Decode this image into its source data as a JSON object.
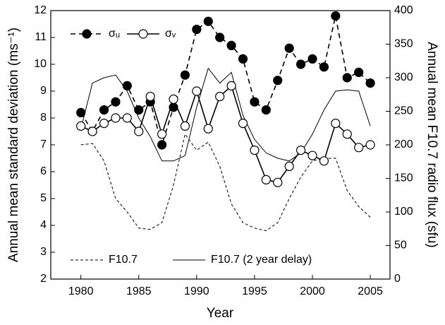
{
  "chart_data": {
    "type": "line",
    "x_label": "Year",
    "y_label": "Annual mean standard deviation (ms⁻¹)",
    "y2_label": "Annual mean F10.7 radio flux (sfu)",
    "x": [
      1980,
      1981,
      1982,
      1983,
      1984,
      1985,
      1986,
      1987,
      1988,
      1989,
      1990,
      1991,
      1992,
      1993,
      1994,
      1995,
      1996,
      1997,
      1998,
      1999,
      2000,
      2001,
      2002,
      2003,
      2004,
      2005
    ],
    "xlim": [
      1977.4,
      2006.7
    ],
    "xticks": [
      1980,
      1985,
      1990,
      1995,
      2000,
      2005
    ],
    "ylim": [
      2,
      12
    ],
    "yticks": [
      2,
      3,
      4,
      5,
      6,
      7,
      8,
      9,
      10,
      11,
      12
    ],
    "y2lim": [
      0,
      400
    ],
    "y2ticks": [
      0,
      50,
      100,
      150,
      200,
      250,
      300,
      350,
      400
    ],
    "grid": false,
    "series": [
      {
        "name": "σᵤ",
        "color": "#000000",
        "line_style": "dashed",
        "marker": "filled",
        "values": [
          8.2,
          7.5,
          8.3,
          8.6,
          9.2,
          8.3,
          8.6,
          7.0,
          8.4,
          9.6,
          11.3,
          11.6,
          11.0,
          10.7,
          10.2,
          8.6,
          8.3,
          9.4,
          10.6,
          10.0,
          10.2,
          9.9,
          11.8,
          9.5,
          9.7,
          9.3
        ]
      },
      {
        "name": "σᵥ",
        "color": "#000000",
        "line_style": "solid",
        "marker": "open",
        "values": [
          7.7,
          7.5,
          7.8,
          8.0,
          8.0,
          7.5,
          8.8,
          7.4,
          8.7,
          7.7,
          9.0,
          7.6,
          8.8,
          9.2,
          7.8,
          6.8,
          5.7,
          5.6,
          6.2,
          6.8,
          6.6,
          6.4,
          7.8,
          7.4,
          6.9,
          7.0
        ]
      },
      {
        "name": "F10.7",
        "color": "#000000",
        "line_style": "dashed-thin",
        "marker": "none",
        "axis": "y2",
        "values": [
          200,
          202,
          176,
          120,
          100,
          76,
          74,
          84,
          140,
          216,
          192,
          204,
          168,
          112,
          84,
          76,
          72,
          84,
          120,
          152,
          176,
          180,
          180,
          132,
          108,
          92
        ]
      },
      {
        "name": "F10.7 (2 year delay)",
        "color": "#000000",
        "line_style": "solid-thin",
        "marker": "none",
        "axis": "y2",
        "values": [
          224,
          292,
          300,
          304,
          280,
          240,
          212,
          176,
          176,
          184,
          256,
          314,
          292,
          308,
          244,
          208,
          188,
          180,
          176,
          188,
          216,
          252,
          280,
          282,
          280,
          228
        ]
      }
    ]
  }
}
